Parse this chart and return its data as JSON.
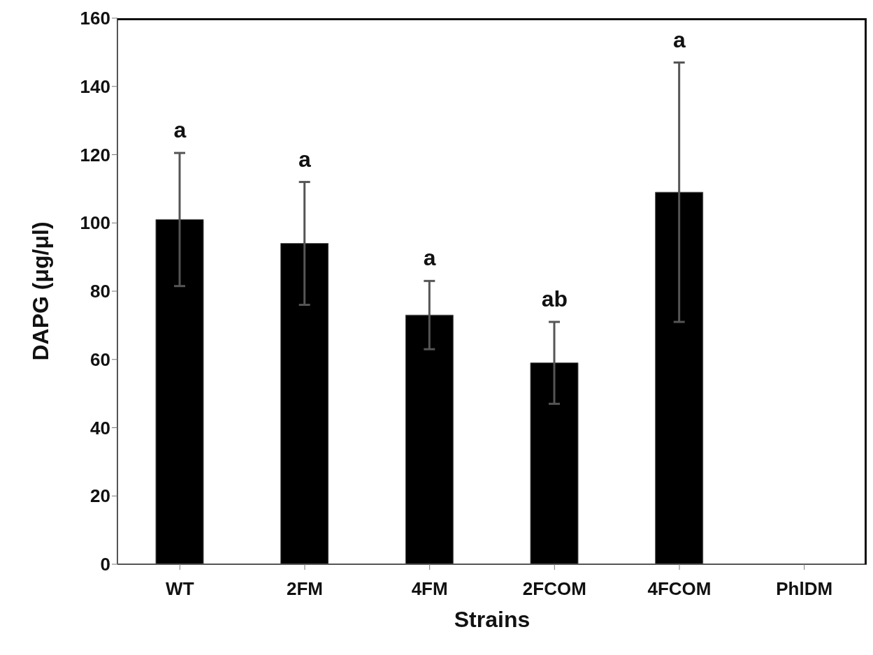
{
  "chart_data": {
    "type": "bar",
    "xlabel": "Strains",
    "ylabel": "DAPG (μg/μl)",
    "categories": [
      "WT",
      "2FM",
      "4FM",
      "2FCOM",
      "4FCOM",
      "PhlDM"
    ],
    "values": [
      101,
      94,
      73,
      59,
      109,
      0
    ],
    "errors": [
      19.5,
      18,
      10,
      12,
      38,
      null
    ],
    "color": "#000000",
    "ylim": [
      0,
      160
    ],
    "yticks": [
      0,
      20,
      40,
      60,
      80,
      100,
      120,
      140,
      160
    ],
    "grid": false,
    "legend": false,
    "annotations": [
      "a",
      "a",
      "a",
      "ab",
      "a"
    ]
  }
}
